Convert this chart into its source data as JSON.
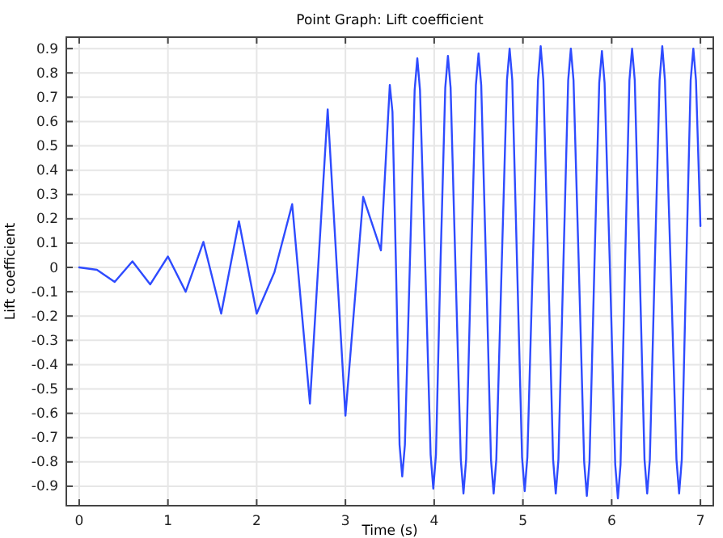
{
  "chart_data": {
    "type": "line",
    "title": "Point Graph: Lift coefficient",
    "xlabel": "Time (s)",
    "ylabel": "Lift coefficient",
    "xlim": [
      -0.145,
      7.145
    ],
    "ylim": [
      -0.98,
      0.947
    ],
    "xticks": [
      0,
      1,
      2,
      3,
      4,
      5,
      6,
      7
    ],
    "yticks": [
      -0.9,
      -0.8,
      -0.7,
      -0.6,
      -0.5,
      -0.4,
      -0.3,
      -0.2,
      -0.1,
      0,
      0.1,
      0.2,
      0.3,
      0.4,
      0.5,
      0.6,
      0.7,
      0.8,
      0.9
    ],
    "grid": true,
    "line_style": "solid",
    "marker": "none",
    "series": [
      {
        "color": "#2e4bff",
        "x": [
          0,
          0.2,
          0.4,
          0.6,
          0.8,
          1.0,
          1.2,
          1.4,
          1.6,
          1.8,
          2.0,
          2.2,
          2.4,
          2.6,
          2.8,
          3.0,
          3.2,
          3.4,
          3.5,
          3.53,
          3.57,
          3.61,
          3.64,
          3.67,
          3.725,
          3.78,
          3.81,
          3.84,
          3.9,
          3.96,
          3.99,
          4.02,
          4.07,
          4.125,
          4.155,
          4.185,
          4.24,
          4.3,
          4.33,
          4.36,
          4.415,
          4.47,
          4.5,
          4.53,
          4.585,
          4.64,
          4.67,
          4.7,
          4.76,
          4.82,
          4.85,
          4.88,
          4.935,
          4.99,
          5.02,
          5.05,
          5.11,
          5.17,
          5.2,
          5.23,
          5.285,
          5.34,
          5.37,
          5.4,
          5.455,
          5.51,
          5.54,
          5.57,
          5.63,
          5.69,
          5.72,
          5.75,
          5.805,
          5.86,
          5.89,
          5.92,
          5.98,
          6.04,
          6.07,
          6.1,
          6.15,
          6.2,
          6.23,
          6.26,
          6.315,
          6.37,
          6.4,
          6.43,
          6.485,
          6.54,
          6.57,
          6.6,
          6.665,
          6.73,
          6.76,
          6.79,
          6.84,
          6.89,
          6.92,
          6.95,
          7.0
        ],
        "values": [
          0,
          -0.01,
          -0.06,
          0.025,
          -0.07,
          0.045,
          -0.1,
          0.105,
          -0.19,
          0.19,
          -0.19,
          -0.02,
          0.26,
          -0.56,
          0.65,
          -0.61,
          0.29,
          0.07,
          0.75,
          0.64,
          0,
          -0.73,
          -0.86,
          -0.73,
          0,
          0.73,
          0.86,
          0.73,
          0,
          -0.77,
          -0.91,
          -0.77,
          0,
          0.74,
          0.87,
          0.74,
          0,
          -0.79,
          -0.93,
          -0.79,
          0,
          0.75,
          0.88,
          0.75,
          0,
          -0.79,
          -0.93,
          -0.79,
          0,
          0.77,
          0.9,
          0.77,
          0,
          -0.78,
          -0.92,
          -0.78,
          0,
          0.77,
          0.91,
          0.77,
          0,
          -0.79,
          -0.93,
          -0.79,
          0,
          0.77,
          0.9,
          0.77,
          0,
          -0.8,
          -0.94,
          -0.8,
          0,
          0.76,
          0.89,
          0.76,
          0,
          -0.81,
          -0.95,
          -0.81,
          0,
          0.77,
          0.9,
          0.77,
          0,
          -0.79,
          -0.93,
          -0.79,
          0,
          0.77,
          0.91,
          0.77,
          0,
          -0.79,
          -0.93,
          -0.79,
          0,
          0.77,
          0.9,
          0.77,
          0.17
        ]
      }
    ]
  }
}
